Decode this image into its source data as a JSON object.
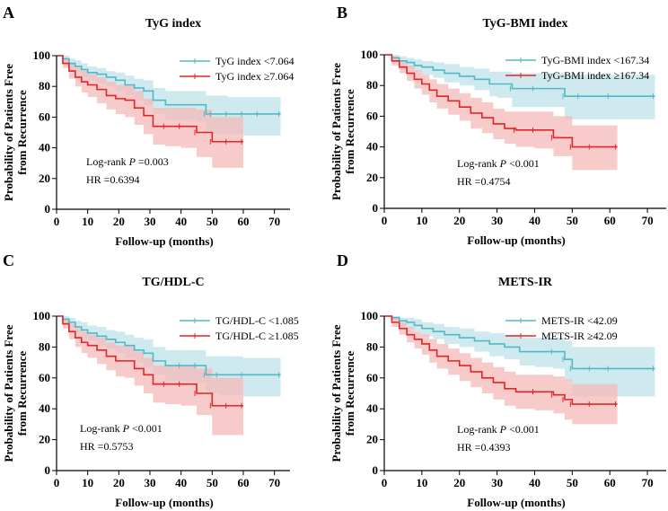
{
  "colors": {
    "cyan": "#53b8c6",
    "cyan_fill": "#bde3e8",
    "red": "#e0262b",
    "red_fill": "#f5b9b9"
  },
  "chart_data": [
    {
      "type": "line",
      "panel_label": "A",
      "title": "TyG index",
      "xlabel": "Follow-up (months)",
      "ylabel_line1": "Probability of Patients Free",
      "ylabel_line2": "from Recurrence",
      "xlim": [
        0,
        75
      ],
      "ylim": [
        0,
        100
      ],
      "xticks": [
        "0",
        "10",
        "20",
        "30",
        "40",
        "50",
        "60",
        "70"
      ],
      "yticks": [
        "0",
        "20",
        "40",
        "60",
        "80",
        "100"
      ],
      "annotation_logrank_prefix": "Log-rank ",
      "annotation_p_symbol": "P",
      "annotation_logrank_value": " =0.003",
      "annotation_hr": "HR =0.6394",
      "series": [
        {
          "name": "TyG index <7.064",
          "color": "cyan",
          "x": [
            0,
            2,
            4,
            6,
            8,
            10,
            13,
            16,
            19,
            22,
            25,
            28,
            31,
            35,
            40,
            45,
            48,
            50,
            55,
            60,
            65,
            72
          ],
          "y": [
            100,
            98,
            95,
            93,
            91,
            89,
            88,
            86,
            84,
            81,
            79,
            77,
            71,
            68,
            68,
            68,
            62,
            62,
            62,
            62,
            62,
            62
          ],
          "lower": [
            100,
            96,
            92,
            89,
            86,
            84,
            82,
            80,
            77,
            74,
            71,
            68,
            62,
            58,
            58,
            57,
            50,
            49,
            49,
            48,
            48,
            48
          ],
          "upper": [
            100,
            100,
            98,
            97,
            95,
            93,
            92,
            90,
            89,
            87,
            85,
            84,
            79,
            77,
            77,
            77,
            74,
            74,
            73,
            73,
            73,
            73
          ]
        },
        {
          "name": "TyG index ≥7.064",
          "color": "red",
          "x": [
            0,
            2,
            4,
            6,
            8,
            10,
            13,
            16,
            19,
            22,
            25,
            28,
            31,
            35,
            40,
            45,
            50,
            55,
            60
          ],
          "y": [
            100,
            95,
            90,
            86,
            83,
            81,
            78,
            74,
            72,
            71,
            66,
            61,
            54,
            54,
            54,
            50,
            44,
            44,
            44
          ],
          "lower": [
            100,
            92,
            85,
            80,
            76,
            73,
            69,
            65,
            62,
            60,
            55,
            49,
            42,
            41,
            40,
            34,
            27,
            27,
            27
          ],
          "upper": [
            100,
            98,
            95,
            92,
            90,
            88,
            86,
            83,
            81,
            81,
            77,
            72,
            66,
            66,
            66,
            65,
            60,
            60,
            60
          ]
        }
      ]
    },
    {
      "type": "line",
      "panel_label": "B",
      "title": "TyG-BMI index",
      "xlabel": "Follow-up (months)",
      "ylabel_line1": "Probability of Patients Free",
      "ylabel_line2": "from Recurrence",
      "xlim": [
        0,
        75
      ],
      "ylim": [
        0,
        100
      ],
      "xticks": [
        "0",
        "10",
        "20",
        "30",
        "40",
        "50",
        "60",
        "70"
      ],
      "yticks": [
        "0",
        "20",
        "40",
        "60",
        "80",
        "100"
      ],
      "annotation_logrank_prefix": "Log-rank ",
      "annotation_p_symbol": "P",
      "annotation_logrank_value": " <0.001",
      "annotation_hr": "HR =0.4754",
      "series": [
        {
          "name": "TyG-BMI index <167.34",
          "color": "cyan",
          "x": [
            0,
            2,
            4,
            6,
            8,
            10,
            13,
            16,
            20,
            24,
            28,
            30,
            34,
            40,
            48,
            52,
            60,
            72
          ],
          "y": [
            100,
            98,
            96,
            95,
            93,
            92,
            90,
            88,
            86,
            84,
            81,
            81,
            78,
            78,
            73,
            73,
            73,
            73
          ],
          "lower": [
            100,
            96,
            93,
            91,
            89,
            87,
            85,
            82,
            80,
            77,
            73,
            72,
            66,
            66,
            58,
            58,
            58,
            58
          ],
          "upper": [
            100,
            100,
            99,
            98,
            97,
            96,
            95,
            94,
            92,
            91,
            89,
            89,
            88,
            88,
            87,
            87,
            87,
            87
          ]
        },
        {
          "name": "TyG-BMI index ≥167.34",
          "color": "red",
          "x": [
            0,
            2,
            4,
            6,
            8,
            10,
            12,
            14,
            17,
            20,
            23,
            26,
            29,
            32,
            35,
            40,
            45,
            50,
            55,
            62
          ],
          "y": [
            100,
            96,
            92,
            88,
            84,
            81,
            77,
            73,
            70,
            66,
            62,
            59,
            55,
            52,
            51,
            51,
            46,
            40,
            40,
            40
          ],
          "lower": [
            100,
            93,
            88,
            83,
            78,
            74,
            69,
            65,
            61,
            57,
            52,
            49,
            45,
            42,
            40,
            39,
            34,
            25,
            25,
            25
          ],
          "upper": [
            100,
            99,
            96,
            93,
            90,
            87,
            84,
            81,
            78,
            75,
            72,
            69,
            65,
            63,
            63,
            63,
            60,
            54,
            54,
            54
          ]
        }
      ]
    },
    {
      "type": "line",
      "panel_label": "C",
      "title": "TG/HDL-C",
      "xlabel": "Follow-up (months)",
      "ylabel_line1": "Probability of Patients Free",
      "ylabel_line2": "from Recurrence",
      "xlim": [
        0,
        75
      ],
      "ylim": [
        0,
        100
      ],
      "xticks": [
        "0",
        "10",
        "20",
        "30",
        "40",
        "50",
        "60",
        "70"
      ],
      "yticks": [
        "0",
        "20",
        "40",
        "60",
        "80",
        "100"
      ],
      "annotation_logrank_prefix": "Log-rank ",
      "annotation_p_symbol": "P",
      "annotation_logrank_value": " <0.001",
      "annotation_hr": "HR =0.5753",
      "series": [
        {
          "name": "TG/HDL-C <1.085",
          "color": "cyan",
          "x": [
            0,
            2,
            4,
            6,
            8,
            10,
            13,
            16,
            19,
            22,
            25,
            28,
            31,
            35,
            40,
            45,
            48,
            52,
            60,
            72
          ],
          "y": [
            100,
            98,
            96,
            93,
            91,
            89,
            87,
            85,
            83,
            81,
            78,
            76,
            71,
            68,
            68,
            68,
            62,
            62,
            62,
            62
          ],
          "lower": [
            100,
            96,
            93,
            89,
            86,
            84,
            81,
            79,
            76,
            73,
            70,
            67,
            62,
            58,
            58,
            57,
            50,
            49,
            48,
            48
          ],
          "upper": [
            100,
            100,
            99,
            97,
            96,
            94,
            93,
            91,
            90,
            88,
            86,
            85,
            80,
            78,
            78,
            78,
            74,
            74,
            73,
            73
          ]
        },
        {
          "name": "TG/HDL-C ≥1.085",
          "color": "red",
          "x": [
            0,
            2,
            4,
            6,
            8,
            10,
            13,
            16,
            19,
            22,
            25,
            28,
            31,
            35,
            40,
            45,
            50,
            55,
            60
          ],
          "y": [
            100,
            95,
            90,
            86,
            83,
            81,
            78,
            74,
            71,
            71,
            66,
            62,
            56,
            56,
            56,
            50,
            42,
            42,
            42
          ],
          "lower": [
            100,
            92,
            85,
            80,
            76,
            73,
            69,
            65,
            61,
            60,
            55,
            50,
            44,
            43,
            42,
            36,
            23,
            23,
            23
          ],
          "upper": [
            100,
            98,
            95,
            92,
            90,
            88,
            86,
            83,
            81,
            81,
            77,
            73,
            68,
            68,
            68,
            66,
            60,
            60,
            60
          ]
        }
      ]
    },
    {
      "type": "line",
      "panel_label": "D",
      "title": "METS-IR",
      "xlabel": "Follow-up (months)",
      "ylabel_line1": "Probability of Patients Free",
      "ylabel_line2": "from Recurrence",
      "xlim": [
        0,
        75
      ],
      "ylim": [
        0,
        100
      ],
      "xticks": [
        "0",
        "10",
        "20",
        "30",
        "40",
        "50",
        "60",
        "70"
      ],
      "yticks": [
        "0",
        "20",
        "40",
        "60",
        "80",
        "100"
      ],
      "annotation_logrank_prefix": "Log-rank ",
      "annotation_p_symbol": "P",
      "annotation_logrank_value": " <0.001",
      "annotation_hr": "HR =0.4393",
      "series": [
        {
          "name": "METS-IR <42.09",
          "color": "cyan",
          "x": [
            0,
            2,
            4,
            6,
            8,
            10,
            13,
            16,
            20,
            24,
            28,
            32,
            36,
            40,
            45,
            48,
            50,
            55,
            60,
            72
          ],
          "y": [
            100,
            99,
            97,
            96,
            94,
            92,
            90,
            88,
            86,
            84,
            82,
            80,
            77,
            77,
            77,
            72,
            66,
            66,
            66,
            66
          ],
          "lower": [
            100,
            97,
            94,
            92,
            90,
            87,
            85,
            82,
            80,
            77,
            74,
            72,
            68,
            67,
            66,
            58,
            48,
            48,
            48,
            48
          ],
          "upper": [
            100,
            100,
            99,
            99,
            98,
            96,
            95,
            93,
            92,
            90,
            89,
            88,
            86,
            86,
            86,
            84,
            80,
            80,
            80,
            80
          ]
        },
        {
          "name": "METS-IR ≥42.09",
          "color": "red",
          "x": [
            0,
            2,
            4,
            6,
            8,
            10,
            12,
            14,
            17,
            20,
            23,
            26,
            29,
            32,
            35,
            40,
            45,
            48,
            50,
            55,
            62
          ],
          "y": [
            100,
            96,
            92,
            88,
            85,
            82,
            78,
            74,
            71,
            68,
            64,
            60,
            57,
            53,
            51,
            51,
            49,
            46,
            43,
            43,
            43
          ],
          "lower": [
            100,
            93,
            88,
            83,
            79,
            75,
            70,
            66,
            62,
            58,
            54,
            50,
            46,
            42,
            40,
            39,
            37,
            33,
            30,
            30,
            30
          ],
          "upper": [
            100,
            99,
            96,
            93,
            90,
            88,
            85,
            82,
            79,
            76,
            73,
            70,
            67,
            64,
            62,
            62,
            61,
            59,
            56,
            56,
            56
          ]
        }
      ]
    }
  ]
}
